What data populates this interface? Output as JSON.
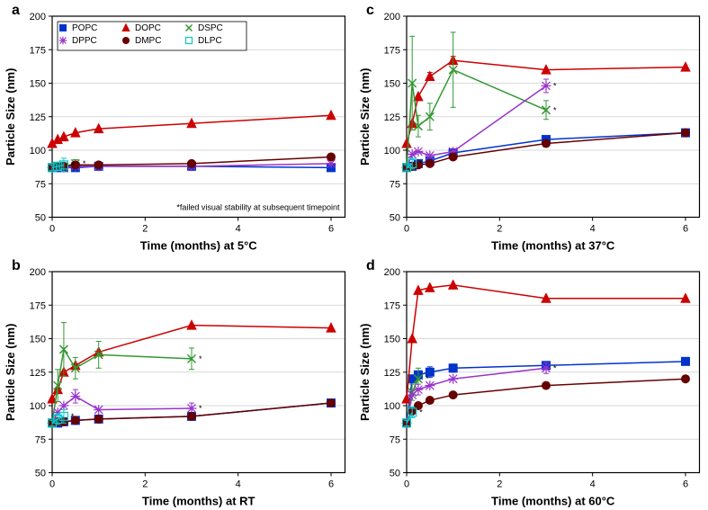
{
  "global": {
    "ylabel": "Particle Size (nm)",
    "y_min": 50,
    "y_max": 200,
    "y_ticks": [
      50,
      75,
      100,
      125,
      150,
      175,
      200
    ],
    "x_min": 0,
    "x_max": 6.3,
    "x_ticks": [
      0,
      2,
      4,
      6
    ],
    "panel_label_fontsize": 16,
    "axis_label_fontsize": 13,
    "tick_fontsize": 11,
    "legend_fontsize": 10,
    "footnote_fontsize": 9,
    "axis_color": "#000000",
    "grid_color": "#cccccc",
    "line_width": 1.5,
    "marker_size": 4.5,
    "error_cap": 3
  },
  "series_style": {
    "POPC": {
      "color": "#0033cc",
      "marker": "square-filled"
    },
    "DOPC": {
      "color": "#cc0000",
      "marker": "triangle-filled"
    },
    "DSPC": {
      "color": "#339933",
      "marker": "x"
    },
    "DPPC": {
      "color": "#9933cc",
      "marker": "asterisk"
    },
    "DMPC": {
      "color": "#660000",
      "marker": "circle-filled"
    },
    "DLPC": {
      "color": "#00cccc",
      "marker": "square-open"
    }
  },
  "legend_order": [
    "POPC",
    "DOPC",
    "DSPC",
    "DPPC",
    "DMPC",
    "DLPC"
  ],
  "legend_cols": 3,
  "footnote_text": "*failed visual stability at subsequent timepoint",
  "panels": [
    {
      "id": "a",
      "label": "a",
      "xlabel": "Time (months) at 5°C",
      "show_legend": true,
      "show_footnote": true,
      "data": {
        "POPC": {
          "x": [
            0,
            0.12,
            0.25,
            0.5,
            1,
            3,
            6
          ],
          "y": [
            87,
            87,
            87,
            87,
            88,
            88,
            87
          ],
          "err": [
            0,
            0,
            0,
            0,
            0,
            0,
            0
          ]
        },
        "DOPC": {
          "x": [
            0,
            0.12,
            0.25,
            0.5,
            1,
            3,
            6
          ],
          "y": [
            105,
            108,
            110,
            113,
            116,
            120,
            126
          ],
          "err": [
            0,
            0,
            0,
            0,
            0,
            0,
            0
          ]
        },
        "DSPC": {
          "x": [
            0,
            0.12,
            0.25,
            0.5
          ],
          "y": [
            87,
            88,
            88,
            90
          ],
          "err": [
            0,
            2,
            2,
            3
          ],
          "end_star": true
        },
        "DPPC": {
          "x": [
            0,
            0.12,
            0.25,
            0.5,
            1,
            3,
            6
          ],
          "y": [
            87,
            87,
            87,
            88,
            88,
            88,
            90
          ],
          "err": [
            0,
            0,
            0,
            0,
            0,
            0,
            0
          ]
        },
        "DMPC": {
          "x": [
            0,
            0.12,
            0.25,
            0.5,
            1,
            3,
            6
          ],
          "y": [
            87,
            88,
            88,
            89,
            89,
            90,
            95
          ],
          "err": [
            0,
            0,
            0,
            0,
            0,
            0,
            0
          ]
        },
        "DLPC": {
          "x": [
            0,
            0.12,
            0.25
          ],
          "y": [
            87,
            88,
            89
          ],
          "err": [
            2,
            3,
            5
          ],
          "end_star": true
        }
      }
    },
    {
      "id": "c",
      "label": "c",
      "xlabel": "Time (months) at 37°C",
      "show_legend": false,
      "show_footnote": false,
      "data": {
        "POPC": {
          "x": [
            0,
            0.12,
            0.25,
            0.5,
            1,
            3,
            6
          ],
          "y": [
            87,
            88,
            90,
            92,
            98,
            108,
            113
          ],
          "err": [
            0,
            0,
            0,
            0,
            0,
            0,
            0
          ]
        },
        "DOPC": {
          "x": [
            0,
            0.12,
            0.25,
            0.5,
            1,
            3,
            6
          ],
          "y": [
            105,
            120,
            140,
            155,
            167,
            160,
            162
          ],
          "err": [
            0,
            0,
            0,
            3,
            3,
            0,
            0
          ]
        },
        "DSPC": {
          "x": [
            0,
            0.12,
            0.25,
            0.5,
            1,
            3
          ],
          "y": [
            87,
            150,
            118,
            125,
            160,
            130
          ],
          "err": [
            0,
            35,
            8,
            10,
            28,
            7
          ],
          "end_star": true
        },
        "DPPC": {
          "x": [
            0,
            0.12,
            0.25,
            0.5,
            1,
            3
          ],
          "y": [
            87,
            97,
            99,
            96,
            99,
            148
          ],
          "err": [
            0,
            0,
            0,
            0,
            0,
            5
          ],
          "end_star": true
        },
        "DMPC": {
          "x": [
            0,
            0.12,
            0.25,
            0.5,
            1,
            3,
            6
          ],
          "y": [
            87,
            88,
            89,
            90,
            95,
            105,
            113
          ],
          "err": [
            0,
            0,
            0,
            0,
            0,
            0,
            0
          ]
        },
        "DLPC": {
          "x": [
            0,
            0.12
          ],
          "y": [
            87,
            90
          ],
          "err": [
            2,
            4
          ],
          "end_star": true
        }
      }
    },
    {
      "id": "b",
      "label": "b",
      "xlabel": "Time (months) at RT",
      "show_legend": false,
      "show_footnote": false,
      "data": {
        "POPC": {
          "x": [
            0,
            0.12,
            0.25,
            0.5,
            1,
            3,
            6
          ],
          "y": [
            87,
            87,
            88,
            89,
            90,
            92,
            102
          ],
          "err": [
            0,
            0,
            0,
            0,
            0,
            0,
            0
          ]
        },
        "DOPC": {
          "x": [
            0,
            0.12,
            0.25,
            0.5,
            1,
            3,
            6
          ],
          "y": [
            105,
            112,
            125,
            130,
            140,
            160,
            158
          ],
          "err": [
            0,
            0,
            0,
            0,
            0,
            0,
            0
          ]
        },
        "DSPC": {
          "x": [
            0,
            0.12,
            0.25,
            0.5,
            1,
            3
          ],
          "y": [
            87,
            115,
            142,
            128,
            138,
            135
          ],
          "err": [
            0,
            12,
            20,
            8,
            10,
            8
          ],
          "end_star": true
        },
        "DPPC": {
          "x": [
            0,
            0.12,
            0.25,
            0.5,
            1,
            3
          ],
          "y": [
            87,
            95,
            100,
            107,
            97,
            98
          ],
          "err": [
            0,
            0,
            0,
            5,
            0,
            4
          ],
          "end_star": true
        },
        "DMPC": {
          "x": [
            0,
            0.12,
            0.25,
            0.5,
            1,
            3,
            6
          ],
          "y": [
            87,
            88,
            88,
            89,
            90,
            92,
            102
          ],
          "err": [
            0,
            0,
            0,
            0,
            0,
            0,
            0
          ]
        },
        "DLPC": {
          "x": [
            0,
            0.12,
            0.25
          ],
          "y": [
            87,
            90,
            92
          ],
          "err": [
            2,
            4,
            5
          ],
          "end_star": true
        }
      }
    },
    {
      "id": "d",
      "label": "d",
      "xlabel": "Time (months) at 60°C",
      "show_legend": false,
      "show_footnote": false,
      "data": {
        "POPC": {
          "x": [
            0,
            0.12,
            0.25,
            0.5,
            1,
            3,
            6
          ],
          "y": [
            87,
            120,
            123,
            125,
            128,
            130,
            133
          ],
          "err": [
            0,
            0,
            0,
            4,
            3,
            0,
            0
          ]
        },
        "DOPC": {
          "x": [
            0,
            0.12,
            0.25,
            0.5,
            1,
            3,
            6
          ],
          "y": [
            105,
            150,
            186,
            188,
            190,
            180,
            180
          ],
          "err": [
            0,
            0,
            0,
            0,
            0,
            0,
            0
          ]
        },
        "DSPC": {
          "x": [
            0,
            0.12,
            0.25
          ],
          "y": [
            87,
            110,
            120
          ],
          "err": [
            0,
            6,
            8
          ],
          "end_star": true
        },
        "DPPC": {
          "x": [
            0,
            0.12,
            0.25,
            0.5,
            1,
            3
          ],
          "y": [
            87,
            108,
            112,
            115,
            120,
            128
          ],
          "err": [
            0,
            0,
            4,
            0,
            0,
            4
          ],
          "end_star": true
        },
        "DMPC": {
          "x": [
            0,
            0.12,
            0.25,
            0.5,
            1,
            3,
            6
          ],
          "y": [
            87,
            96,
            100,
            104,
            108,
            115,
            120
          ],
          "err": [
            0,
            0,
            0,
            0,
            0,
            0,
            0
          ]
        },
        "DLPC": {
          "x": [
            0,
            0.12
          ],
          "y": [
            87,
            95
          ],
          "err": [
            2,
            4
          ],
          "end_star": true
        }
      }
    }
  ]
}
